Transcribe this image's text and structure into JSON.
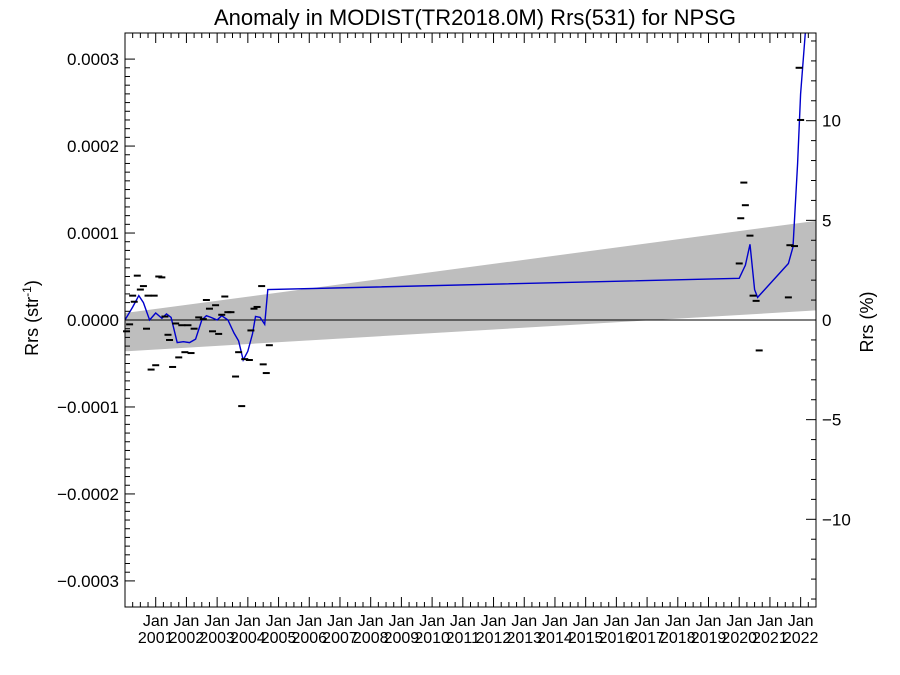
{
  "chart_data": {
    "type": "scatter",
    "title": "Anomaly in MODIST(TR2018.0M) Rrs(531) for NPSG",
    "ylabel_left": {
      "base": "Rrs (str",
      "sup": "-1",
      "close": ")"
    },
    "ylabel_right": "Rrs (%)",
    "xlim": [
      2000.0,
      2022.5
    ],
    "ylim": [
      -0.00033,
      0.00033
    ],
    "ylim_right": [
      -14.4,
      14.4
    ],
    "yticks_left": [
      {
        "value": 0.0003,
        "label": "0.0003"
      },
      {
        "value": 0.0002,
        "label": "0.0002"
      },
      {
        "value": 0.0001,
        "label": "0.0001"
      },
      {
        "value": 0.0,
        "label": "0.0000"
      },
      {
        "value": -0.0001,
        "label": "−0.0001"
      },
      {
        "value": -0.0002,
        "label": "−0.0002"
      },
      {
        "value": -0.0003,
        "label": "−0.0003"
      }
    ],
    "yticks_right": [
      {
        "value": 10,
        "label": "10"
      },
      {
        "value": 5,
        "label": "5"
      },
      {
        "value": 0,
        "label": "0"
      },
      {
        "value": -5,
        "label": "−5"
      },
      {
        "value": -10,
        "label": "−10"
      }
    ],
    "xticks": [
      {
        "value": 2001.0,
        "month": "Jan",
        "year": "2001"
      },
      {
        "value": 2002.0,
        "month": "Jan",
        "year": "2002"
      },
      {
        "value": 2003.0,
        "month": "Jan",
        "year": "2003"
      },
      {
        "value": 2004.0,
        "month": "Jan",
        "year": "2004"
      },
      {
        "value": 2005.0,
        "month": "Jan",
        "year": "2005"
      },
      {
        "value": 2006.0,
        "month": "Jan",
        "year": "2006"
      },
      {
        "value": 2007.0,
        "month": "Jan",
        "year": "2007"
      },
      {
        "value": 2008.0,
        "month": "Jan",
        "year": "2008"
      },
      {
        "value": 2009.0,
        "month": "Jan",
        "year": "2009"
      },
      {
        "value": 2010.0,
        "month": "Jan",
        "year": "2010"
      },
      {
        "value": 2011.0,
        "month": "Jan",
        "year": "2011"
      },
      {
        "value": 2012.0,
        "month": "Jan",
        "year": "2012"
      },
      {
        "value": 2013.0,
        "month": "Jan",
        "year": "2013"
      },
      {
        "value": 2014.0,
        "month": "Jan",
        "year": "2014"
      },
      {
        "value": 2015.0,
        "month": "Jan",
        "year": "2015"
      },
      {
        "value": 2016.0,
        "month": "Jan",
        "year": "2016"
      },
      {
        "value": 2017.0,
        "month": "Jan",
        "year": "2017"
      },
      {
        "value": 2018.0,
        "month": "Jan",
        "year": "2018"
      },
      {
        "value": 2019.0,
        "month": "Jan",
        "year": "2019"
      },
      {
        "value": 2020.0,
        "month": "Jan",
        "year": "2020"
      },
      {
        "value": 2021.0,
        "month": "Jan",
        "year": "2021"
      },
      {
        "value": 2022.0,
        "month": "Jan",
        "year": "2022"
      }
    ],
    "confidence_band": {
      "x": [
        2000.0,
        2022.5
      ],
      "upper": [
        8e-06,
        0.000114
      ],
      "lower": [
        -3.6e-05,
        1.1e-05
      ],
      "color": "#bebebe"
    },
    "zero_line": 0.0,
    "points": [
      {
        "x": 2000.05,
        "y": -1.3e-05
      },
      {
        "x": 2000.15,
        "y": -5e-06
      },
      {
        "x": 2000.25,
        "y": 2.8e-05
      },
      {
        "x": 2000.3,
        "y": 2.1e-05
      },
      {
        "x": 2000.4,
        "y": 5.1e-05
      },
      {
        "x": 2000.5,
        "y": 3.5e-05
      },
      {
        "x": 2000.6,
        "y": 3.9e-05
      },
      {
        "x": 2000.7,
        "y": -1e-05
      },
      {
        "x": 2000.75,
        "y": 2.8e-05
      },
      {
        "x": 2000.85,
        "y": -5.7e-05
      },
      {
        "x": 2000.95,
        "y": 2.8e-05
      },
      {
        "x": 2001.0,
        "y": -5.2e-05
      },
      {
        "x": 2001.1,
        "y": 5e-05
      },
      {
        "x": 2001.2,
        "y": 4.9e-05
      },
      {
        "x": 2001.3,
        "y": 4e-06
      },
      {
        "x": 2001.4,
        "y": -1.7e-05
      },
      {
        "x": 2001.45,
        "y": -2.3e-05
      },
      {
        "x": 2001.55,
        "y": -5.4e-05
      },
      {
        "x": 2001.65,
        "y": -4e-06
      },
      {
        "x": 2001.75,
        "y": -4.3e-05
      },
      {
        "x": 2001.85,
        "y": -6e-06
      },
      {
        "x": 2001.95,
        "y": -3.7e-05
      },
      {
        "x": 2002.05,
        "y": -6e-06
      },
      {
        "x": 2002.15,
        "y": -3.8e-05
      },
      {
        "x": 2002.25,
        "y": -1e-05
      },
      {
        "x": 2002.4,
        "y": 3e-06
      },
      {
        "x": 2002.55,
        "y": 1e-06
      },
      {
        "x": 2002.65,
        "y": 2.3e-05
      },
      {
        "x": 2002.75,
        "y": 1.3e-05
      },
      {
        "x": 2002.85,
        "y": -1.3e-05
      },
      {
        "x": 2002.95,
        "y": 1.7e-05
      },
      {
        "x": 2003.05,
        "y": -1.6e-05
      },
      {
        "x": 2003.15,
        "y": 6e-06
      },
      {
        "x": 2003.25,
        "y": 2.7e-05
      },
      {
        "x": 2003.35,
        "y": 9e-06
      },
      {
        "x": 2003.45,
        "y": 9e-06
      },
      {
        "x": 2003.6,
        "y": -6.5e-05
      },
      {
        "x": 2003.7,
        "y": -3.7e-05
      },
      {
        "x": 2003.8,
        "y": -9.9e-05
      },
      {
        "x": 2003.9,
        "y": -4.5e-05
      },
      {
        "x": 2004.05,
        "y": -4.6e-05
      },
      {
        "x": 2004.1,
        "y": -1.2e-05
      },
      {
        "x": 2004.2,
        "y": 1.3e-05
      },
      {
        "x": 2004.3,
        "y": 1.5e-05
      },
      {
        "x": 2004.45,
        "y": 3.9e-05
      },
      {
        "x": 2004.5,
        "y": -5.1e-05
      },
      {
        "x": 2004.6,
        "y": -6.1e-05
      },
      {
        "x": 2004.7,
        "y": -2.9e-05
      },
      {
        "x": 2020.0,
        "y": 6.5e-05
      },
      {
        "x": 2020.05,
        "y": 0.000117
      },
      {
        "x": 2020.15,
        "y": 0.000158
      },
      {
        "x": 2020.2,
        "y": 0.000132
      },
      {
        "x": 2020.35,
        "y": 9.7e-05
      },
      {
        "x": 2020.45,
        "y": 2.8e-05
      },
      {
        "x": 2020.55,
        "y": 2.2e-05
      },
      {
        "x": 2020.65,
        "y": -3.5e-05
      },
      {
        "x": 2021.6,
        "y": 2.6e-05
      },
      {
        "x": 2021.65,
        "y": 8.6e-05
      },
      {
        "x": 2021.8,
        "y": 8.5e-05
      },
      {
        "x": 2021.95,
        "y": 0.00029
      },
      {
        "x": 2022.0,
        "y": 0.00023
      }
    ],
    "trend_line": {
      "color": "#0000cc",
      "x": [
        2000.0,
        2000.25,
        2000.45,
        2000.6,
        2000.8,
        2001.0,
        2001.2,
        2001.35,
        2001.5,
        2001.7,
        2001.9,
        2002.1,
        2002.3,
        2002.5,
        2002.65,
        2002.8,
        2003.0,
        2003.15,
        2003.35,
        2003.55,
        2003.7,
        2003.85,
        2004.0,
        2004.15,
        2004.25,
        2004.4,
        2004.55,
        2004.65,
        2020.0,
        2020.2,
        2020.35,
        2020.5,
        2020.6,
        2021.6,
        2021.75,
        2021.9,
        2022.0,
        2022.15
      ],
      "y": [
        0.0,
        1.5e-05,
        2.8e-05,
        2e-05,
        0.0,
        8e-06,
        2e-06,
        7e-06,
        3e-06,
        -2.6e-05,
        -2.5e-05,
        -2.6e-05,
        -2.2e-05,
        0.0,
        5e-06,
        3e-06,
        0.0,
        5e-06,
        0.0,
        -1.5e-05,
        -2.4e-05,
        -4.6e-05,
        -3.6e-05,
        -1.6e-05,
        4e-06,
        3e-06,
        -5e-06,
        3.5e-05,
        4.8e-05,
        6.3e-05,
        8.7e-05,
        3.5e-05,
        2.6e-05,
        6.5e-05,
        8.4e-05,
        0.00018,
        0.00026,
        0.00034
      ]
    }
  }
}
